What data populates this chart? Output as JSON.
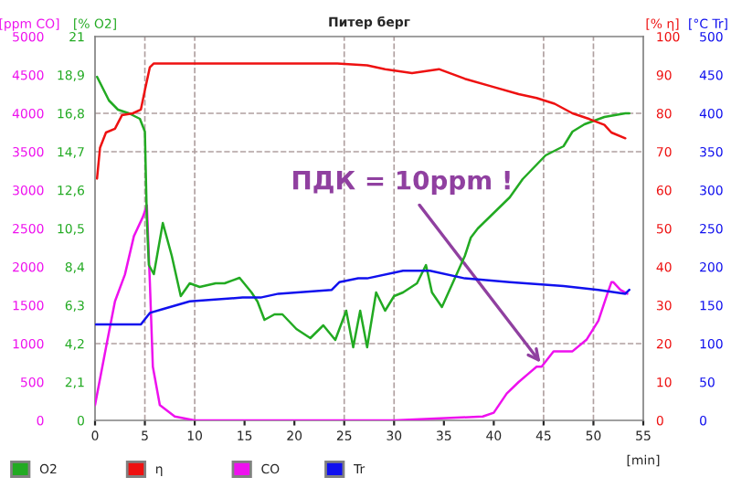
{
  "chart_data": [
    {
      "type": "line",
      "title": "Питер берг",
      "xlabel": "[min]",
      "ylabel": "[ppm CO]",
      "y2label": "[% O2]",
      "y3label": "[% η]",
      "xlim": [
        0,
        55
      ],
      "xticks": [
        0,
        5,
        10,
        15,
        20,
        25,
        30,
        35,
        40,
        45,
        50,
        55
      ],
      "ylim": [
        0,
        5000
      ],
      "yticks": [
        0,
        500,
        1000,
        1500,
        2000,
        2500,
        3000,
        3500,
        4000,
        4500,
        5000
      ],
      "y2lim": [
        0,
        21
      ],
      "y2ticks": [
        0,
        {
          "value": 2.1,
          "label": "2,1"
        },
        {
          "value": 4.2,
          "label": "4,2"
        },
        {
          "value": 6.3,
          "label": "6,3"
        },
        {
          "value": 8.4,
          "label": "8,4"
        },
        {
          "value": 10.5,
          "label": "10,5"
        },
        {
          "value": 12.6,
          "label": "12,6"
        },
        {
          "value": 14.7,
          "label": "14,7"
        },
        {
          "value": 16.8,
          "label": "16,8"
        },
        {
          "value": 18.9,
          "label": "18,9"
        },
        21
      ],
      "y3lim": [
        0,
        100
      ],
      "y3ticks": [
        0,
        10,
        20,
        30,
        40,
        50,
        60,
        70,
        80,
        90,
        100
      ],
      "grid": false,
      "legend": "bottom left",
      "series": [
        {
          "name": "O2",
          "color": "#22aa22",
          "axis": "y2",
          "x": [
            0.2,
            1.4,
            2.3,
            3.4,
            4.5,
            5.0,
            5.2,
            5.4,
            5.9,
            6.8,
            7.7,
            8.6,
            9.5,
            10.5,
            12.1,
            13.0,
            14.5,
            15.7,
            16.3,
            17.0,
            18.0,
            18.8,
            20.2,
            21.6,
            22.9,
            24.1,
            25.2,
            25.9,
            26.6,
            27.3,
            28.2,
            29.1,
            30.0,
            30.9,
            32.3,
            33.2,
            33.8,
            34.8,
            37.1,
            37.7,
            38.4,
            41.6,
            42.9,
            45.2,
            47.0,
            47.9,
            49.1,
            51.1,
            53.2,
            53.6
          ],
          "values": [
            18.8,
            17.5,
            17.0,
            16.8,
            16.5,
            15.8,
            11.0,
            8.5,
            8.0,
            10.8,
            9.0,
            6.8,
            7.5,
            7.3,
            7.5,
            7.5,
            7.8,
            7.0,
            6.5,
            5.5,
            5.8,
            5.8,
            5.0,
            4.5,
            5.2,
            4.4,
            6.0,
            4.0,
            6.0,
            4.0,
            7.0,
            6.0,
            6.8,
            7.0,
            7.5,
            8.5,
            7.0,
            6.2,
            9.0,
            10.0,
            10.5,
            12.2,
            13.2,
            14.5,
            15.0,
            15.8,
            16.2,
            16.6,
            16.8,
            16.8
          ]
        },
        {
          "name": "η",
          "color": "#ee1111",
          "axis": "y3",
          "x": [
            0.2,
            0.5,
            1.1,
            2.0,
            2.7,
            3.8,
            4.6,
            5.0,
            5.5,
            5.9,
            6.8,
            9.5,
            15.0,
            20.0,
            24.3,
            27.3,
            29.1,
            31.8,
            34.5,
            37.1,
            39.8,
            42.5,
            44.3,
            46.1,
            47.9,
            49.6,
            51.1,
            51.8,
            53.2
          ],
          "values": [
            63,
            71,
            75,
            76,
            79.5,
            80,
            81,
            86,
            92,
            93,
            93,
            93,
            93,
            93,
            93,
            92.5,
            91.5,
            90.5,
            91.5,
            89,
            87,
            85,
            84,
            82.5,
            80,
            78.5,
            77,
            75,
            73.5
          ]
        },
        {
          "name": "CO",
          "color": "#ee11ee",
          "axis": "y",
          "x": [
            0.0,
            1.1,
            2.0,
            3.0,
            3.9,
            4.8,
            5.2,
            5.5,
            5.8,
            6.5,
            8.0,
            10.0,
            20.0,
            30.0,
            38.9,
            40.0,
            41.3,
            42.5,
            43.4,
            44.3,
            44.8,
            46.0,
            47.9,
            49.3,
            50.5,
            51.4,
            51.8,
            52.0,
            52.7,
            53.4
          ],
          "values": [
            200,
            950,
            1550,
            1900,
            2400,
            2650,
            2800,
            1800,
            700,
            200,
            50,
            0,
            0,
            0,
            50,
            100,
            350,
            500,
            600,
            700,
            700,
            900,
            900,
            1050,
            1300,
            1650,
            1800,
            1800,
            1700,
            1650
          ]
        }
      ],
      "ref_lines": [
        {
          "axis": "x",
          "value": 5,
          "color": "#b0a0a0",
          "line_style": "dashed"
        },
        {
          "axis": "x",
          "value": 10,
          "color": "#b0a0a0",
          "line_style": "dashed"
        },
        {
          "axis": "x",
          "value": 25,
          "color": "#b0a0a0",
          "line_style": "dashed"
        },
        {
          "axis": "x",
          "value": 30,
          "color": "#b0a0a0",
          "line_style": "dashed"
        },
        {
          "axis": "x",
          "value": 45,
          "color": "#b0a0a0",
          "line_style": "dashed"
        },
        {
          "axis": "x",
          "value": 50,
          "color": "#b0a0a0",
          "line_style": "dashed"
        },
        {
          "axis": "y",
          "value": 4000,
          "color": "#b0a0a0",
          "line_style": "dashed"
        },
        {
          "axis": "y",
          "value": 3500,
          "color": "#b0a0a0",
          "line_style": "dashed"
        },
        {
          "axis": "y",
          "value": 1000,
          "color": "#b0a0a0",
          "line_style": "dashed"
        }
      ],
      "annotations": [
        {
          "text": "ПДК = 10ppm !",
          "x": 45,
          "y": 700
        }
      ]
    },
    {
      "type": "line",
      "ylabel": "[°C Tr]",
      "xlim": [
        0,
        55
      ],
      "ylim": [
        0,
        500
      ],
      "yticks": [
        0,
        50,
        100,
        150,
        200,
        250,
        300,
        350,
        400,
        450,
        500
      ],
      "tick_labels": "y",
      "grid": false,
      "legend": "bottom left",
      "series": [
        {
          "name": "Tr",
          "color": "#1111ee",
          "x": [
            0.1,
            0.9,
            1.4,
            4.6,
            5.5,
            6.8,
            9.5,
            14.8,
            16.6,
            18.4,
            23.75,
            24.5,
            26.4,
            27.3,
            30.9,
            33.6,
            37.1,
            41.6,
            47.0,
            50.5,
            53.2,
            53.6
          ],
          "values": [
            125,
            125,
            125,
            125,
            140,
            145,
            155,
            160,
            160,
            165,
            170,
            180,
            185,
            185,
            195,
            195,
            185,
            180,
            175,
            170,
            165,
            170
          ]
        }
      ]
    }
  ]
}
